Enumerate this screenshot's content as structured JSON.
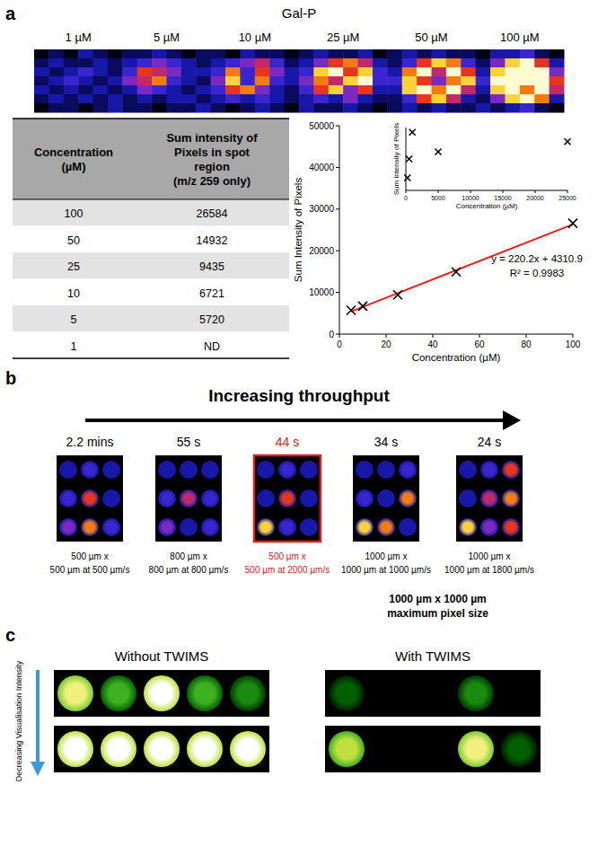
{
  "panel_labels": [
    "a",
    "b",
    "c"
  ],
  "panel_a": {
    "title": "Gal-P",
    "concentrations": [
      "1 µM",
      "5 µM",
      "10 µM",
      "25 µM",
      "50 µM",
      "100 µM"
    ],
    "heatmap": {
      "cells": [
        [
          0,
          1,
          0,
          2,
          1,
          0,
          1,
          1,
          2,
          1,
          0,
          1,
          1,
          0,
          2,
          1,
          1,
          0,
          1,
          2,
          1,
          1,
          2,
          0,
          1,
          2,
          1,
          2,
          1,
          1,
          0,
          2,
          2,
          3,
          1,
          0
        ],
        [
          1,
          2,
          1,
          1,
          2,
          1,
          2,
          3,
          4,
          3,
          2,
          1,
          2,
          3,
          4,
          5,
          3,
          1,
          2,
          4,
          6,
          7,
          5,
          2,
          1,
          3,
          6,
          8,
          7,
          3,
          1,
          4,
          8,
          9,
          6,
          2
        ],
        [
          2,
          1,
          2,
          3,
          2,
          1,
          3,
          6,
          5,
          4,
          2,
          2,
          3,
          7,
          3,
          6,
          4,
          2,
          3,
          8,
          9,
          6,
          8,
          3,
          2,
          7,
          9,
          5,
          9,
          6,
          2,
          8,
          9,
          9,
          9,
          4
        ],
        [
          1,
          2,
          3,
          2,
          1,
          2,
          4,
          5,
          7,
          3,
          2,
          1,
          4,
          8,
          3,
          7,
          3,
          2,
          4,
          7,
          5,
          8,
          9,
          3,
          3,
          8,
          6,
          4,
          7,
          8,
          3,
          9,
          9,
          9,
          9,
          6
        ],
        [
          2,
          1,
          2,
          1,
          2,
          1,
          2,
          4,
          3,
          2,
          1,
          2,
          3,
          6,
          7,
          4,
          2,
          1,
          3,
          6,
          8,
          4,
          6,
          2,
          2,
          8,
          9,
          7,
          9,
          5,
          2,
          8,
          9,
          7,
          9,
          5
        ],
        [
          1,
          2,
          1,
          2,
          1,
          2,
          1,
          2,
          1,
          2,
          2,
          1,
          2,
          3,
          2,
          3,
          2,
          1,
          2,
          3,
          2,
          4,
          2,
          1,
          1,
          3,
          6,
          8,
          5,
          2,
          1,
          4,
          8,
          9,
          7,
          2
        ],
        [
          0,
          1,
          1,
          0,
          1,
          2,
          1,
          1,
          0,
          1,
          1,
          2,
          1,
          0,
          1,
          2,
          1,
          0,
          2,
          1,
          1,
          2,
          1,
          0,
          1,
          2,
          1,
          2,
          1,
          1,
          2,
          1,
          2,
          3,
          1,
          0
        ]
      ]
    },
    "table": {
      "header": [
        [
          "Concentration",
          "(µM)"
        ],
        [
          "Sum intensity of",
          "Pixels in spot",
          "region",
          "(m/z 259 only)"
        ]
      ],
      "rows": [
        [
          100,
          26584
        ],
        [
          50,
          14932
        ],
        [
          25,
          9435
        ],
        [
          10,
          6721
        ],
        [
          5,
          5720
        ],
        [
          1,
          "ND"
        ]
      ]
    }
  },
  "chart_data": [
    {
      "type": "scatter",
      "x": [
        100,
        50,
        25,
        10,
        5
      ],
      "series": [
        {
          "type": "scatter",
          "marker": "x",
          "color": "#000000",
          "values": [
            26584,
            14932,
            9435,
            6721,
            5720
          ]
        },
        {
          "type": "line",
          "color": "#e8231f",
          "x": [
            5,
            100
          ],
          "values": [
            5410,
            26330
          ]
        }
      ],
      "xlabel": "Concentration (µM)",
      "ylabel": "Sum Intensity of Pixels",
      "xlim": [
        0,
        100
      ],
      "ylim": [
        0,
        50000
      ],
      "xticks": [
        0,
        20,
        40,
        60,
        80,
        100
      ],
      "yticks": [
        0,
        10000,
        20000,
        30000,
        40000,
        50000
      ],
      "annotations": [
        "y = 220.2x + 4310.9",
        "R² = 0.9983"
      ]
    },
    {
      "type": "scatter",
      "x": [
        250,
        500,
        1000,
        5000,
        25000
      ],
      "series": [
        {
          "type": "scatter",
          "marker": "x",
          "color": "#000000",
          "values": [
            34000,
            40000,
            48500,
            42300,
            45500
          ]
        }
      ],
      "xlabel": "Concentration (µM)",
      "ylabel": "Sum intensity of Pixels",
      "xlim": [
        0,
        25000
      ],
      "ylim": [
        30000,
        50000
      ],
      "xticks": [
        0,
        5000,
        10000,
        15000,
        20000,
        25000
      ],
      "tick_labels": "x"
    }
  ],
  "panel_b": {
    "title": "Increasing throughput",
    "images": [
      {
        "time": "2.2 mins",
        "caption": [
          "500 µm x",
          "500 µm at 500 µm/s"
        ],
        "spots": [
          [
            2,
            3,
            2
          ],
          [
            3,
            6,
            2
          ],
          [
            4,
            7,
            3
          ]
        ]
      },
      {
        "time": "55 s",
        "caption": [
          "800 µm x",
          "800 µm at 800 µm/s"
        ],
        "spots": [
          [
            2,
            2,
            2
          ],
          [
            3,
            5,
            3
          ],
          [
            4,
            2,
            3
          ]
        ]
      },
      {
        "time": "44 s",
        "caption": [
          "500 µm x",
          "500 µm at 2000 µm/s"
        ],
        "color": "#e02020",
        "spots": [
          [
            2,
            3,
            2
          ],
          [
            2,
            6,
            2
          ],
          [
            8,
            3,
            2
          ]
        ]
      },
      {
        "time": "34 s",
        "caption": [
          "1000 µm x",
          "1000 µm at 1000 µm/s"
        ],
        "spots": [
          [
            2,
            2,
            3
          ],
          [
            3,
            2,
            7
          ],
          [
            8,
            7,
            2
          ]
        ]
      },
      {
        "time": "24 s",
        "caption": [
          "1000 µm x",
          "1000 µm at 1800 µm/s"
        ],
        "spots": [
          [
            2,
            3,
            6
          ],
          [
            2,
            5,
            7
          ],
          [
            8,
            4,
            6
          ]
        ]
      }
    ],
    "note": [
      "1000 µm x 1000 µm",
      "maximum pixel size"
    ]
  },
  "panel_c": {
    "headers": [
      "Without TWIMS",
      "With TWIMS"
    ],
    "axis_label": "Decreasing Visualisation Intensity",
    "images": [
      {
        "rows": [
          [
            8,
            5,
            9,
            5,
            4
          ],
          [
            9,
            9,
            9,
            9,
            9
          ]
        ]
      },
      {
        "rows": [
          [
            3,
            0,
            0,
            4,
            0
          ],
          [
            7,
            0,
            0,
            8,
            3
          ]
        ]
      }
    ]
  }
}
